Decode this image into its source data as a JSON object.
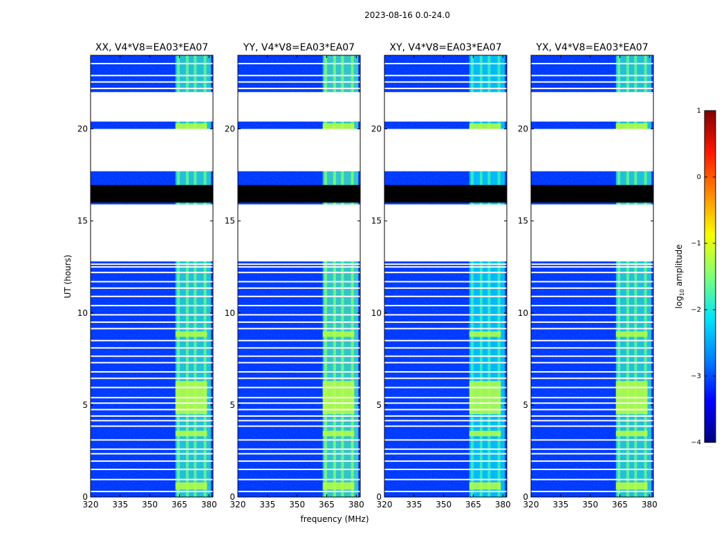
{
  "suptitle": "2023-08-16 0.0-24.0",
  "colors": {
    "background": "#ffffff",
    "axis": "#000000",
    "flagged": "#ffffff",
    "blackout": "#000000",
    "colormap": [
      "#00007f",
      "#0000ff",
      "#0080ff",
      "#00e5f8",
      "#7dff7a",
      "#f8ff00",
      "#ff8900",
      "#ff1600",
      "#7f0000"
    ]
  },
  "chart_data": {
    "type": "heatmap",
    "xlabel": "frequency (MHz)",
    "ylabel": "UT (hours)",
    "xlim": [
      320,
      382
    ],
    "ylim": [
      0,
      24
    ],
    "xticks": [
      320,
      335,
      350,
      365,
      380
    ],
    "yticks": [
      0,
      5,
      10,
      15,
      20
    ],
    "panels": [
      {
        "title": "XX, V4*V8=EA03*EA07",
        "band_level": -1.9
      },
      {
        "title": "YY, V4*V8=EA03*EA07",
        "band_level": -1.8
      },
      {
        "title": "XY, V4*V8=EA03*EA07",
        "band_level": -2.1
      },
      {
        "title": "YX, V4*V8=EA03*EA07",
        "band_level": -1.9
      }
    ],
    "background_level": -3.1,
    "rfi_band_mhz": [
      363,
      381
    ],
    "rfi_channels_mhz": [
      364.5,
      369,
      373,
      378
    ],
    "strong_rfi_intervals_ut": [
      [
        0.4,
        0.8
      ],
      [
        3.3,
        3.6
      ],
      [
        4.5,
        6.3
      ],
      [
        8.7,
        9.0
      ],
      [
        20.0,
        20.3
      ]
    ],
    "no_data_ut": [
      [
        12.8,
        15.9
      ],
      [
        17.7,
        20.0
      ],
      [
        20.4,
        22.0
      ]
    ],
    "blackout_ut": [
      [
        16.0,
        16.95
      ]
    ],
    "flagged_lines_ut": [
      0.3,
      0.95,
      1.5,
      1.95,
      2.35,
      2.6,
      3.1,
      3.85,
      4.15,
      4.4,
      4.75,
      5.1,
      5.4,
      5.95,
      6.45,
      6.8,
      7.3,
      7.65,
      8.1,
      8.5,
      9.15,
      9.5,
      9.9,
      10.4,
      10.9,
      11.35,
      11.7,
      12.2,
      12.5,
      12.65,
      22.2,
      22.55,
      22.9,
      23.55
    ]
  },
  "colorbar": {
    "label": "log",
    "label_sub": "10",
    "label_suffix": " amplitude",
    "min": -4,
    "max": 1,
    "ticks": [
      "1",
      "0",
      "−1",
      "−2",
      "−3",
      "−4"
    ],
    "footnote": "....."
  }
}
